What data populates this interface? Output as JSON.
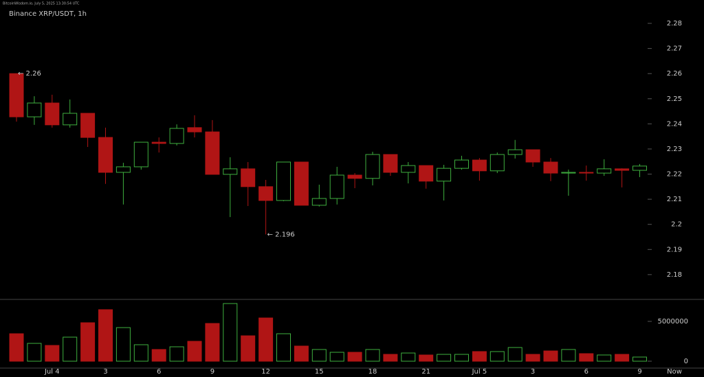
{
  "chart_data": {
    "type": "candlestick",
    "title": "Binance XRP/USDT, 1h",
    "watermark": "BitcoinWisdom.io, July 5, 2025 13:30:54 UTC",
    "categories": [
      null,
      null,
      "Jul 4",
      null,
      null,
      "3",
      null,
      null,
      "6",
      null,
      null,
      "9",
      null,
      null,
      "12",
      null,
      null,
      "15",
      null,
      null,
      "18",
      null,
      null,
      "21",
      null,
      null,
      "Jul 5",
      null,
      null,
      "3",
      null,
      null,
      "6",
      null,
      null,
      "9"
    ],
    "now_label": "Now",
    "open": [
      2.26,
      2.2428,
      2.2483,
      2.2396,
      2.2442,
      2.2346,
      2.2207,
      2.2229,
      2.2327,
      2.2322,
      2.2385,
      2.2368,
      2.2199,
      2.2221,
      2.215,
      2.2095,
      2.2248,
      2.2076,
      2.2103,
      2.2196,
      2.2183,
      2.2278,
      2.2207,
      2.2234,
      2.2172,
      2.2223,
      2.2256,
      2.2213,
      2.2278,
      2.2297,
      2.2248,
      2.2204,
      2.2207,
      2.2204,
      2.2221,
      2.2215
    ],
    "high": [
      2.26,
      2.251,
      2.2516,
      2.2497,
      2.2442,
      2.2385,
      2.2245,
      2.2327,
      2.2346,
      2.2398,
      2.2434,
      2.2415,
      2.2267,
      2.2248,
      2.2177,
      2.2248,
      2.2248,
      2.2158,
      2.2229,
      2.2204,
      2.2289,
      2.2278,
      2.2248,
      2.2234,
      2.2237,
      2.2273,
      2.2264,
      2.2286,
      2.2336,
      2.2297,
      2.2264,
      2.2218,
      2.2234,
      2.2259,
      2.2223,
      2.224
    ],
    "low": [
      2.2409,
      2.2396,
      2.2385,
      2.2385,
      2.2308,
      2.2161,
      2.2079,
      2.2218,
      2.2286,
      2.2314,
      2.2346,
      2.2199,
      2.2029,
      2.2073,
      2.196,
      2.2092,
      2.2076,
      2.2071,
      2.2079,
      2.2144,
      2.2155,
      2.2193,
      2.2163,
      2.2142,
      2.2095,
      2.2218,
      2.2174,
      2.2204,
      2.2262,
      2.2229,
      2.2172,
      2.2114,
      2.2174,
      2.2193,
      2.2147,
      2.2188
    ],
    "close": [
      2.2428,
      2.2483,
      2.2396,
      2.2442,
      2.2346,
      2.2207,
      2.2229,
      2.2327,
      2.2322,
      2.2382,
      2.2368,
      2.2199,
      2.2221,
      2.215,
      2.2095,
      2.2248,
      2.2076,
      2.2103,
      2.2196,
      2.2183,
      2.2278,
      2.2207,
      2.2234,
      2.2172,
      2.2223,
      2.2256,
      2.2213,
      2.2278,
      2.2297,
      2.2248,
      2.2204,
      2.2207,
      2.2204,
      2.2221,
      2.2215,
      2.2232
    ],
    "volume": [
      3450000,
      2240000,
      1980000,
      3020000,
      4830000,
      6470000,
      4220000,
      2070000,
      1470000,
      1810000,
      2500000,
      4740000,
      7240000,
      3190000,
      5430000,
      3450000,
      1900000,
      1470000,
      1120000,
      1120000,
      1470000,
      860000,
      1030000,
      780000,
      860000,
      860000,
      1210000,
      1210000,
      1720000,
      860000,
      1290000,
      1470000,
      950000,
      780000,
      860000,
      520000
    ],
    "ylim": [
      2.1704,
      2.2893
    ],
    "yticks": [
      2.18,
      2.19,
      2.2,
      2.21,
      2.22,
      2.23,
      2.24,
      2.25,
      2.26,
      2.27,
      2.28
    ],
    "volume_ylim": [
      -690000,
      7760000
    ],
    "volume_yticks": [
      0,
      5000000
    ],
    "up_color": "#3fb03f",
    "down_color": "#b01515",
    "annotations": [
      {
        "text": "← 2.26",
        "value": 2.26
      },
      {
        "text": "← 2.196",
        "value": 2.196
      }
    ]
  }
}
